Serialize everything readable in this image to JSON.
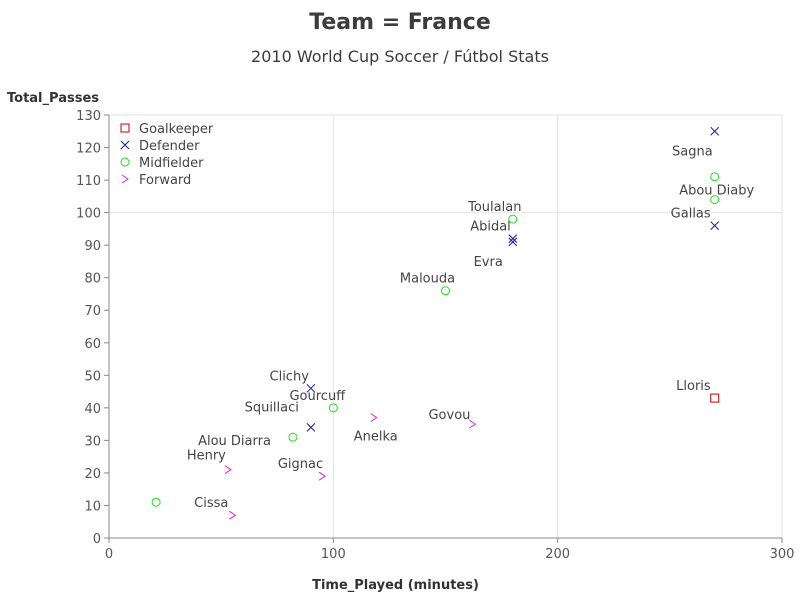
{
  "title": "Team = France",
  "subtitle": "2010 World Cup Soccer / Fútbol Stats",
  "chart_data": {
    "type": "scatter",
    "xlabel": "Time_Played (minutes)",
    "ylabel": "Total_Passes",
    "xlim": [
      0,
      300
    ],
    "ylim": [
      0,
      130
    ],
    "xticks": [
      0,
      100,
      200,
      300
    ],
    "yticks": [
      0,
      10,
      20,
      30,
      40,
      50,
      60,
      70,
      80,
      90,
      100,
      110,
      120,
      130
    ],
    "grid_x": [
      100,
      200
    ],
    "grid_y": [
      100
    ],
    "legend_position": "top-left",
    "categories": [
      {
        "name": "Goalkeeper",
        "marker": "square",
        "color": "#cc0000"
      },
      {
        "name": "Defender",
        "marker": "x",
        "color": "#1a1aa8"
      },
      {
        "name": "Midfielder",
        "marker": "circle",
        "color": "#22dd22"
      },
      {
        "name": "Forward",
        "marker": "chevron",
        "color": "#dd22dd"
      }
    ],
    "points": [
      {
        "label": "Lloris",
        "position": "Goalkeeper",
        "x": 270,
        "y": 43
      },
      {
        "label": "Sagna",
        "position": "Defender",
        "x": 270,
        "y": 125
      },
      {
        "label": "Gallas",
        "position": "Defender",
        "x": 270,
        "y": 96
      },
      {
        "label": "Abidal",
        "position": "Defender",
        "x": 180,
        "y": 92
      },
      {
        "label": "Evra",
        "position": "Defender",
        "x": 180,
        "y": 91
      },
      {
        "label": "Clichy",
        "position": "Defender",
        "x": 90,
        "y": 46
      },
      {
        "label": "Squillaci",
        "position": "Defender",
        "x": 90,
        "y": 34
      },
      {
        "label": "",
        "position": "Midfielder",
        "x": 270,
        "y": 111
      },
      {
        "label": "Abou Diaby",
        "position": "Midfielder",
        "x": 270,
        "y": 104
      },
      {
        "label": "Toulalan",
        "position": "Midfielder",
        "x": 180,
        "y": 98
      },
      {
        "label": "Malouda",
        "position": "Midfielder",
        "x": 150,
        "y": 76
      },
      {
        "label": "Gourcuff",
        "position": "Midfielder",
        "x": 100,
        "y": 40
      },
      {
        "label": "Alou Diarra",
        "position": "Midfielder",
        "x": 82,
        "y": 31
      },
      {
        "label": "",
        "position": "Midfielder",
        "x": 21,
        "y": 11
      },
      {
        "label": "Govou",
        "position": "Forward",
        "x": 162,
        "y": 35
      },
      {
        "label": "Anelka",
        "position": "Forward",
        "x": 118,
        "y": 37
      },
      {
        "label": "Gignac",
        "position": "Forward",
        "x": 95,
        "y": 19
      },
      {
        "label": "Henry",
        "position": "Forward",
        "x": 53,
        "y": 21
      },
      {
        "label": "Cissa",
        "position": "Forward",
        "x": 55,
        "y": 7
      }
    ]
  }
}
